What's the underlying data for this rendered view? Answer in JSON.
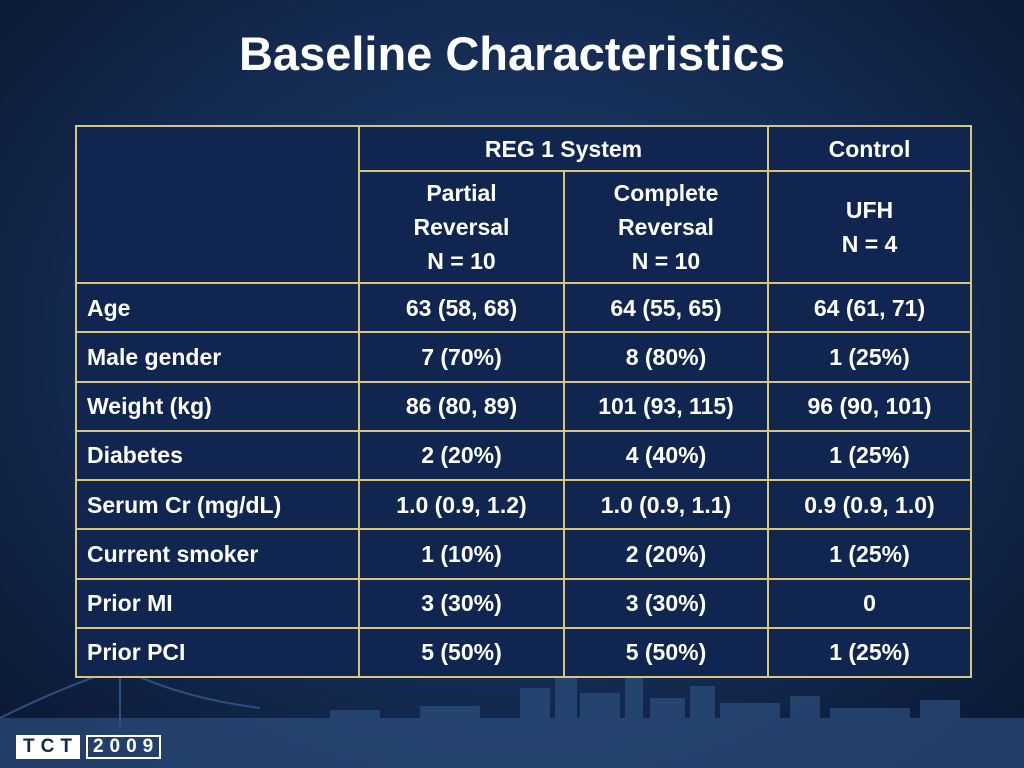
{
  "title": "Baseline Characteristics",
  "table": {
    "group_headers": [
      "REG 1 System",
      "Control"
    ],
    "column_headers": [
      "Partial\nReversal\nN = 10",
      "Complete\nReversal\nN = 10",
      "UFH\nN = 4"
    ],
    "rows": [
      [
        "Age",
        "63 (58, 68)",
        "64 (55, 65)",
        "64 (61, 71)"
      ],
      [
        "Male gender",
        "7 (70%)",
        "8 (80%)",
        "1 (25%)"
      ],
      [
        "Weight (kg)",
        "86 (80, 89)",
        "101 (93, 115)",
        "96 (90, 101)"
      ],
      [
        "Diabetes",
        "2 (20%)",
        "4 (40%)",
        "1 (25%)"
      ],
      [
        "Serum Cr (mg/dL)",
        "1.0 (0.9, 1.2)",
        "1.0 (0.9, 1.1)",
        "0.9 (0.9, 1.0)"
      ],
      [
        "Current smoker",
        "1 (10%)",
        "2 (20%)",
        "1 (25%)"
      ],
      [
        "Prior MI",
        "3 (30%)",
        "3 (30%)",
        "0"
      ],
      [
        "Prior PCI",
        "5 (50%)",
        "5 (50%)",
        "1 (25%)"
      ]
    ]
  },
  "logo": {
    "brand": "TCT",
    "year": "2009"
  }
}
